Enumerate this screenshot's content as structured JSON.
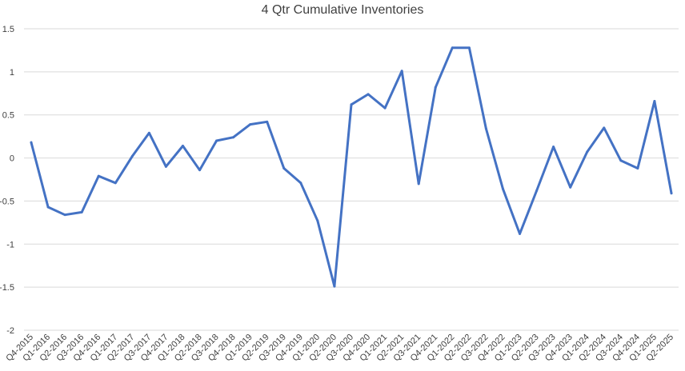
{
  "chart_data": {
    "type": "line",
    "title": "4 Qtr Cumulative Inventories",
    "xlabel": "",
    "ylabel": "",
    "ylim": [
      -2,
      1.5
    ],
    "yticks": [
      1.5,
      1,
      0.5,
      0,
      -0.5,
      -1,
      -1.5,
      -2
    ],
    "ytick_labels": [
      "1.5",
      "1",
      "0.5",
      "0",
      "-0.5",
      "-1",
      "-1.5",
      "-2"
    ],
    "grid": true,
    "legend": "none",
    "categories": [
      "Q4-2015",
      "Q1-2016",
      "Q2-2016",
      "Q3-2016",
      "Q4-2016",
      "Q1-2017",
      "Q2-2017",
      "Q3-2017",
      "Q4-2017",
      "Q1-2018",
      "Q2-2018",
      "Q3-2018",
      "Q4-2018",
      "Q1-2019",
      "Q2-2019",
      "Q3-2019",
      "Q4-2019",
      "Q1-2020",
      "Q2-2020",
      "Q3-2020",
      "Q4-2020",
      "Q1-2021",
      "Q2-2021",
      "Q3-2021",
      "Q4-2021",
      "Q1-2022",
      "Q2-2022",
      "Q3-2022",
      "Q4-2022",
      "Q1-2023",
      "Q2-2023",
      "Q3-2023",
      "Q4-2023",
      "Q1-2024",
      "Q2-2024",
      "Q3-2024",
      "Q4-2024",
      "Q1-2025",
      "Q2-2025"
    ],
    "series": [
      {
        "color": "#4472c4",
        "values": [
          0.18,
          -0.57,
          -0.66,
          -0.63,
          -0.21,
          -0.29,
          0.02,
          0.29,
          -0.1,
          0.14,
          -0.14,
          0.2,
          0.24,
          0.39,
          0.42,
          -0.12,
          -0.29,
          -0.73,
          -1.49,
          0.62,
          0.74,
          0.58,
          1.01,
          -0.3,
          0.82,
          1.28,
          1.28,
          0.34,
          -0.36,
          -0.88,
          -0.38,
          0.13,
          -0.34,
          0.07,
          0.35,
          -0.03,
          -0.12,
          0.66,
          -0.41
        ]
      }
    ]
  }
}
